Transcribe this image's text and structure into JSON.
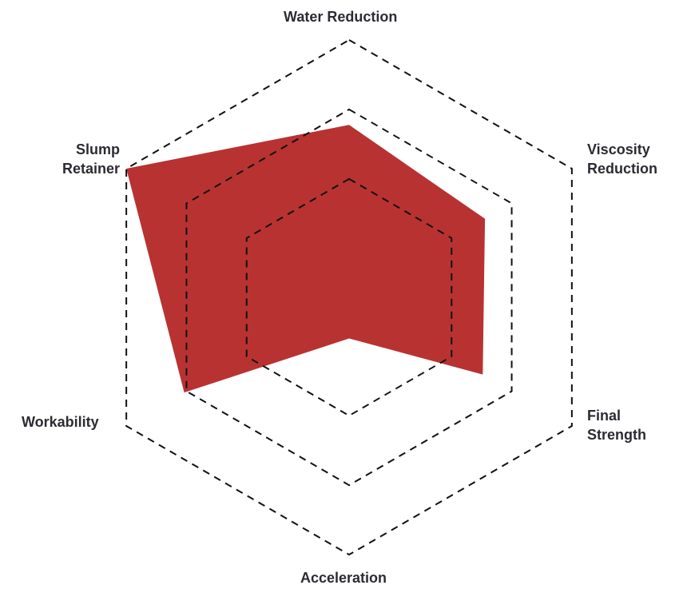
{
  "chart_data": {
    "type": "radar",
    "axes": [
      "Water Reduction",
      "Viscosity Reduction",
      "Final Strength",
      "Acceleration",
      "Workability",
      "Slump Retainer"
    ],
    "axis_labels_display": [
      "Water Reduction",
      "Viscosity\nReduction",
      "Final\nStrength",
      "Acceleration",
      "Workability",
      "Slump\nRetainer"
    ],
    "rings": [
      46,
      73,
      100
    ],
    "range": [
      0,
      100
    ],
    "grid": "dashed hexagons",
    "series": [
      {
        "values": [
          67,
          61,
          60,
          16,
          74,
          100
        ],
        "color": "#b83232"
      }
    ]
  }
}
